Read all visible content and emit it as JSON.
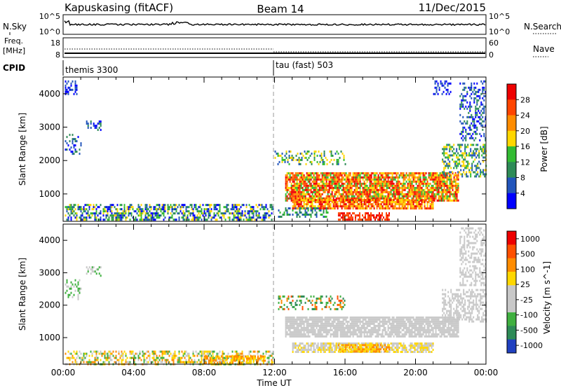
{
  "header": {
    "station": "Kapuskasing (fitACF)",
    "beam": "Beam 14",
    "date": "11/Dec/2015"
  },
  "panels": {
    "nsky": {
      "left_label": "N.Sky",
      "right_label": "N.Search",
      "left_ticks": [
        "10^5",
        "10^0"
      ],
      "right_ticks": [
        "10^5",
        "10^0"
      ]
    },
    "freq": {
      "left_label_top": "Freq.",
      "left_label_bottom": "[MHz]",
      "right_label": "Nave",
      "left_ticks": [
        "18",
        "8"
      ],
      "right_ticks": [
        "60",
        "0"
      ]
    },
    "cpid": {
      "label": "CPID",
      "modes": [
        {
          "name": "themis 3300",
          "start_hour": 0
        },
        {
          "name": "tau (fast) 503",
          "start_hour": 12
        }
      ]
    }
  },
  "chart_data": [
    {
      "type": "heatmap",
      "name": "power",
      "ylabel": "Slant Range [km]",
      "yticks": [
        1000,
        2000,
        3000,
        4000
      ],
      "ylim": [
        180,
        4500
      ],
      "colorbar_label": "Power [dB]",
      "colorbar_ticks": [
        "4",
        "8",
        "12",
        "16",
        "20",
        "24",
        "28"
      ],
      "colors": [
        "#0000ff",
        "#2255bb",
        "#2e8b57",
        "#33bb33",
        "#ffd700",
        "#ff8c00",
        "#ff4500",
        "#ee0000"
      ],
      "regions": [
        {
          "x": [
            0.1,
            11.9
          ],
          "y": [
            200,
            700
          ],
          "density": 0.55,
          "levels": [
            0,
            1,
            2,
            3,
            4
          ]
        },
        {
          "x": [
            0.1,
            1.0
          ],
          "y": [
            2200,
            2800
          ],
          "density": 0.3,
          "levels": [
            0,
            1,
            2
          ]
        },
        {
          "x": [
            0.1,
            0.8
          ],
          "y": [
            4000,
            4400
          ],
          "density": 0.4,
          "levels": [
            0,
            1
          ]
        },
        {
          "x": [
            1.3,
            2.1
          ],
          "y": [
            2900,
            3200
          ],
          "density": 0.45,
          "levels": [
            0,
            1,
            2
          ]
        },
        {
          "x": [
            12.0,
            16.0
          ],
          "y": [
            1900,
            2300
          ],
          "density": 0.35,
          "levels": [
            1,
            2,
            3,
            4
          ]
        },
        {
          "x": [
            12.6,
            22.4
          ],
          "y": [
            800,
            1650
          ],
          "density": 0.85,
          "levels": [
            3,
            4,
            5,
            6,
            7
          ]
        },
        {
          "x": [
            13.0,
            21.0
          ],
          "y": [
            550,
            850
          ],
          "density": 0.8,
          "levels": [
            4,
            5,
            6,
            7
          ]
        },
        {
          "x": [
            15.6,
            18.5
          ],
          "y": [
            200,
            450
          ],
          "density": 0.6,
          "levels": [
            6,
            7
          ]
        },
        {
          "x": [
            12.2,
            15.0
          ],
          "y": [
            300,
            600
          ],
          "density": 0.4,
          "levels": [
            1,
            2,
            3
          ]
        },
        {
          "x": [
            21.5,
            24.0
          ],
          "y": [
            1500,
            2500
          ],
          "density": 0.5,
          "levels": [
            1,
            2,
            3,
            4
          ]
        },
        {
          "x": [
            22.5,
            24.0
          ],
          "y": [
            2600,
            4400
          ],
          "density": 0.35,
          "levels": [
            0,
            1,
            2
          ]
        },
        {
          "x": [
            21.0,
            22.0
          ],
          "y": [
            4000,
            4400
          ],
          "density": 0.3,
          "levels": [
            0,
            1
          ]
        }
      ]
    },
    {
      "type": "heatmap",
      "name": "velocity",
      "ylabel": "Slant Range [km]",
      "yticks": [
        1000,
        2000,
        3000,
        4000
      ],
      "ylim": [
        180,
        4500
      ],
      "xlabel": "Time UT",
      "xticks": [
        "00:00",
        "04:00",
        "08:00",
        "12:00",
        "16:00",
        "20:00",
        "00:00"
      ],
      "xlim": [
        0,
        24
      ],
      "colorbar_label": "Velocity [m s^-1]",
      "colorbar_ticks": [
        "1000",
        "500",
        "100",
        "25",
        "-25",
        "-100",
        "-500",
        "-1000"
      ],
      "colors": [
        "#2040c0",
        "#2e8b57",
        "#40b040",
        "#c8c8c8",
        "#c8c8c8",
        "#ffd700",
        "#ff8c00",
        "#ff5000",
        "#ee0000"
      ],
      "regions": [
        {
          "x": [
            0.1,
            11.9
          ],
          "y": [
            200,
            600
          ],
          "density": 0.5,
          "levels": [
            2,
            3,
            5,
            6
          ]
        },
        {
          "x": [
            8.0,
            11.5
          ],
          "y": [
            200,
            450
          ],
          "density": 0.6,
          "levels": [
            5,
            6
          ]
        },
        {
          "x": [
            0.1,
            1.0
          ],
          "y": [
            2200,
            2800
          ],
          "density": 0.25,
          "levels": [
            2,
            3
          ]
        },
        {
          "x": [
            1.3,
            2.1
          ],
          "y": [
            2900,
            3200
          ],
          "density": 0.4,
          "levels": [
            2,
            3
          ]
        },
        {
          "x": [
            12.6,
            22.4
          ],
          "y": [
            1050,
            1650
          ],
          "density": 0.85,
          "levels": [
            3,
            4
          ]
        },
        {
          "x": [
            13.0,
            21.0
          ],
          "y": [
            550,
            850
          ],
          "density": 0.8,
          "levels": [
            3,
            4,
            5
          ]
        },
        {
          "x": [
            15.6,
            18.5
          ],
          "y": [
            600,
            800
          ],
          "density": 0.7,
          "levels": [
            5,
            6
          ]
        },
        {
          "x": [
            12.2,
            16.0
          ],
          "y": [
            1900,
            2300
          ],
          "density": 0.35,
          "levels": [
            1,
            2,
            6,
            7
          ]
        },
        {
          "x": [
            21.5,
            24.0
          ],
          "y": [
            1500,
            2500
          ],
          "density": 0.5,
          "levels": [
            3,
            4
          ]
        },
        {
          "x": [
            22.5,
            24.0
          ],
          "y": [
            2600,
            4400
          ],
          "density": 0.4,
          "levels": [
            3,
            4
          ]
        }
      ]
    }
  ]
}
